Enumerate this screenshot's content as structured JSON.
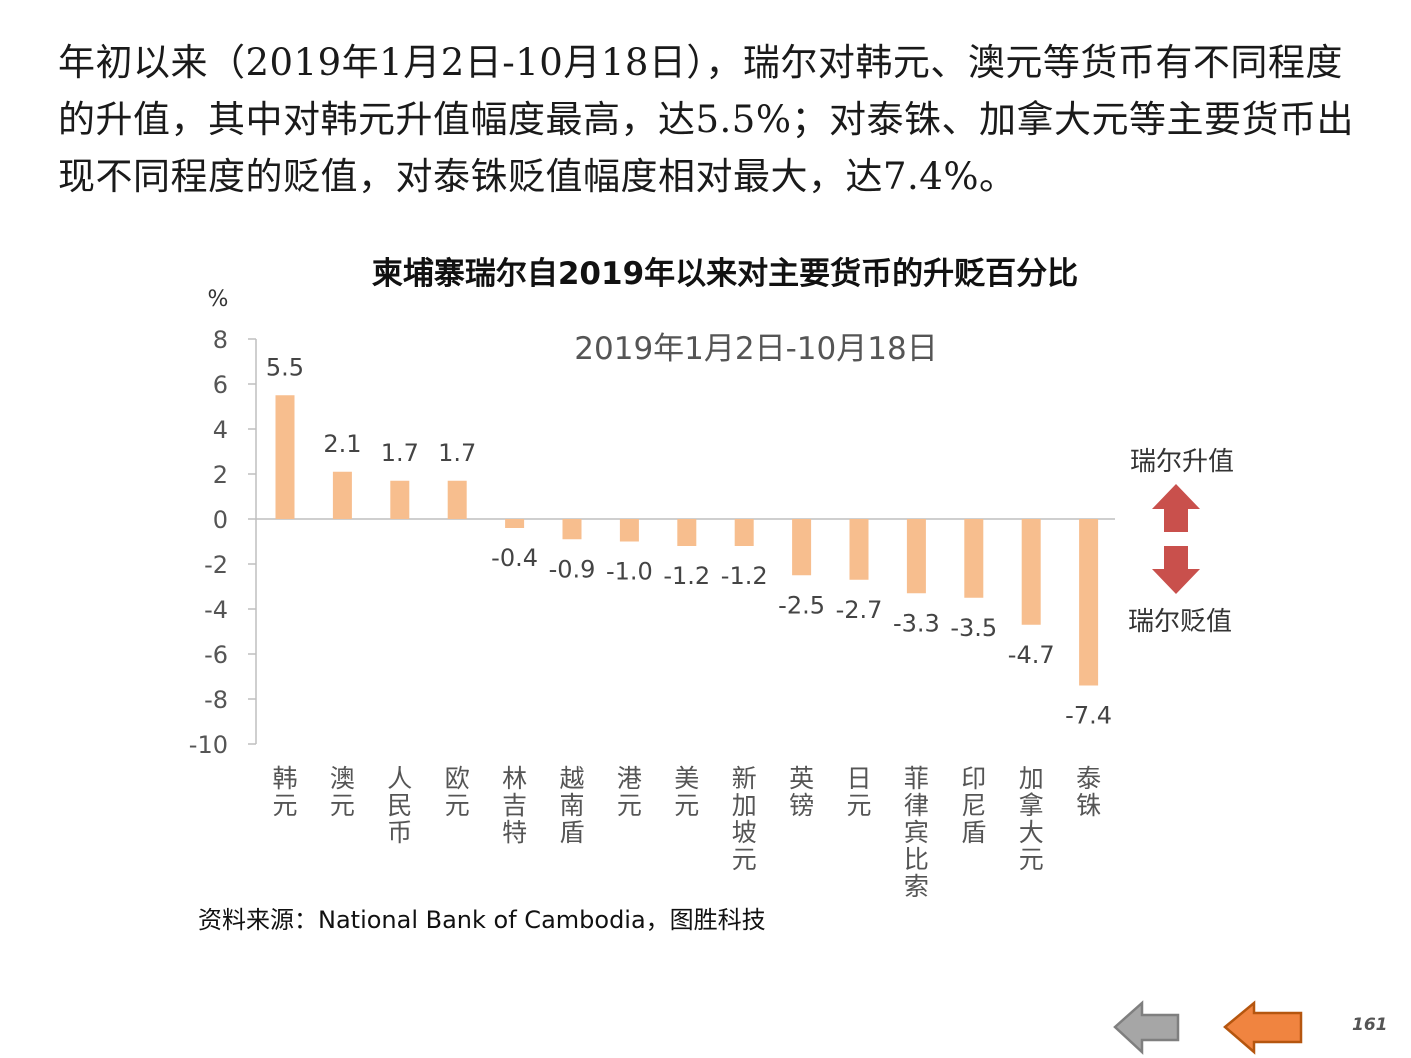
{
  "intro": {
    "text": "年初以来（2019年1月2日-10月18日），瑞尔对韩元、澳元等货币有不同程度的升值，其中对韩元升值幅度最高，达5.5%；对泰铢、加拿大元等主要货币出现不同程度的贬值，对泰铢贬值幅度相对最大，达7.4%。"
  },
  "chart_data": {
    "type": "bar",
    "title": "柬埔寨瑞尔自2019年以来对主要货币的升贬百分比",
    "subtitle": "2019年1月2日-10月18日",
    "ylabel": "%",
    "xlabel": "",
    "ylim": [
      -10,
      8
    ],
    "yticks": [
      8,
      6,
      4,
      2,
      0,
      -2,
      -4,
      -6,
      -8,
      -10
    ],
    "categories": [
      "韩元",
      "澳元",
      "人民币",
      "欧元",
      "林吉特",
      "越南盾",
      "港元",
      "美元",
      "新加坡元",
      "英镑",
      "日元",
      "菲律宾比索",
      "印尼盾",
      "加拿大元",
      "泰铢"
    ],
    "values": [
      5.5,
      2.1,
      1.7,
      1.7,
      -0.4,
      -0.9,
      -1.0,
      -1.2,
      -1.2,
      -2.5,
      -2.7,
      -3.3,
      -3.5,
      -4.7,
      -7.4
    ],
    "value_labels": [
      "5.5",
      "2.1",
      "1.7",
      "1.7",
      "-0.4",
      "-0.9",
      "-1.0",
      "-1.2",
      "-1.2",
      "-2.5",
      "-2.7",
      "-3.3",
      "-3.5",
      "-4.7",
      "-7.4"
    ],
    "bar_color": "#f7be8e",
    "grid": false,
    "legend": {
      "up_label": "瑞尔升值",
      "down_label": "瑞尔贬值",
      "arrow_color": "#c9504c"
    }
  },
  "source": "资料来源：National Bank of Cambodia，图胜科技",
  "nav": {
    "prev_icon": "arrow-left-gray-icon",
    "next_icon": "arrow-left-orange-icon",
    "prev_color": "#a6a6a6",
    "next_color": "#f08440",
    "page_number": "161"
  }
}
